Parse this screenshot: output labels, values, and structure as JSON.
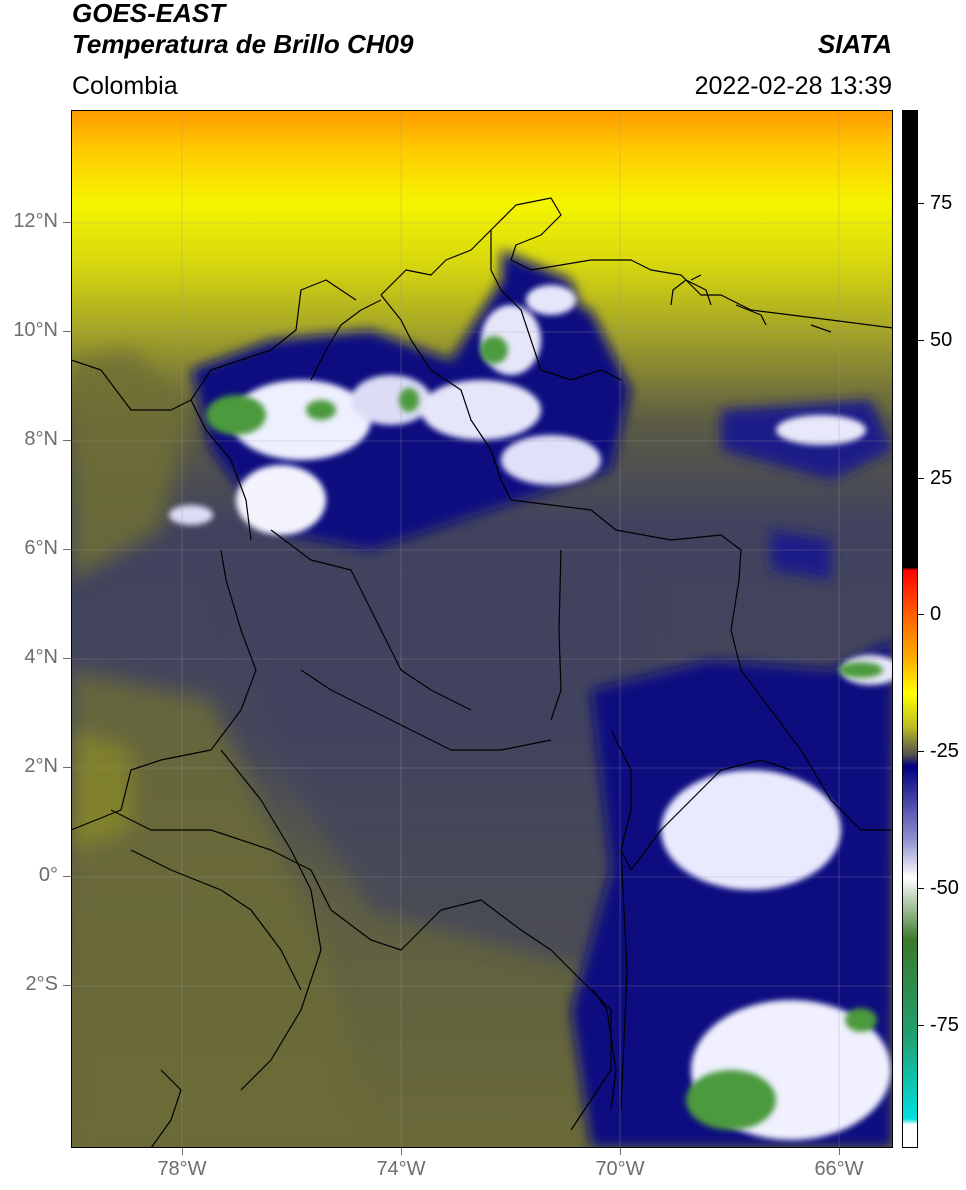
{
  "header": {
    "title_line1": "GOES-EAST",
    "title_line2": "Temperatura de Brillo CH09",
    "brand": "SIATA",
    "region": "Colombia",
    "datetime": "2022-02-28 13:39"
  },
  "map": {
    "extent": {
      "lon_min": -80,
      "lon_max": -65,
      "lat_min": -5,
      "lat_max": 14
    },
    "lat_ticks": [
      {
        "value": 12,
        "label": "12°N"
      },
      {
        "value": 10,
        "label": "10°N"
      },
      {
        "value": 8,
        "label": "8°N"
      },
      {
        "value": 6,
        "label": "6°N"
      },
      {
        "value": 4,
        "label": "4°N"
      },
      {
        "value": 2,
        "label": "2°N"
      },
      {
        "value": 0,
        "label": "0°"
      },
      {
        "value": -2,
        "label": "2°S"
      }
    ],
    "lon_ticks": [
      {
        "value": -78,
        "label": "78°W"
      },
      {
        "value": -74,
        "label": "74°W"
      },
      {
        "value": -70,
        "label": "70°W"
      },
      {
        "value": -66,
        "label": "66°W"
      }
    ],
    "gridlines": true,
    "colors": {
      "yellow": "#e6e600",
      "olive": "#6f7034",
      "slate": "#3d4060",
      "navy": "#0c0f80",
      "white_cloud": "#f2f2ff",
      "green_cloud": "#4c9a3e",
      "coast": "#000000"
    }
  },
  "colorbar": {
    "vmin": -95,
    "vmax": 90,
    "ticks": [
      75,
      50,
      25,
      0,
      -25,
      -50,
      -75
    ],
    "tick_labels": [
      "75",
      "50",
      "25",
      "0",
      "-25",
      "-50",
      "-75"
    ],
    "stops": [
      {
        "v": 90,
        "color": "#000000"
      },
      {
        "v": 8.5,
        "color": "#000000"
      },
      {
        "v": 8,
        "color": "#ff0000"
      },
      {
        "v": 0,
        "color": "#ff6000"
      },
      {
        "v": -8,
        "color": "#ffb000"
      },
      {
        "v": -14,
        "color": "#ffff00"
      },
      {
        "v": -20,
        "color": "#bcbc22"
      },
      {
        "v": -25,
        "color": "#505050"
      },
      {
        "v": -27,
        "color": "#000080"
      },
      {
        "v": -40,
        "color": "#9090d0"
      },
      {
        "v": -47,
        "color": "#ffffff"
      },
      {
        "v": -58,
        "color": "#3a7a2a"
      },
      {
        "v": -75,
        "color": "#20a070"
      },
      {
        "v": -90,
        "color": "#00e0e0"
      },
      {
        "v": -91,
        "color": "#ffffff"
      },
      {
        "v": -95,
        "color": "#ffffff"
      }
    ]
  }
}
